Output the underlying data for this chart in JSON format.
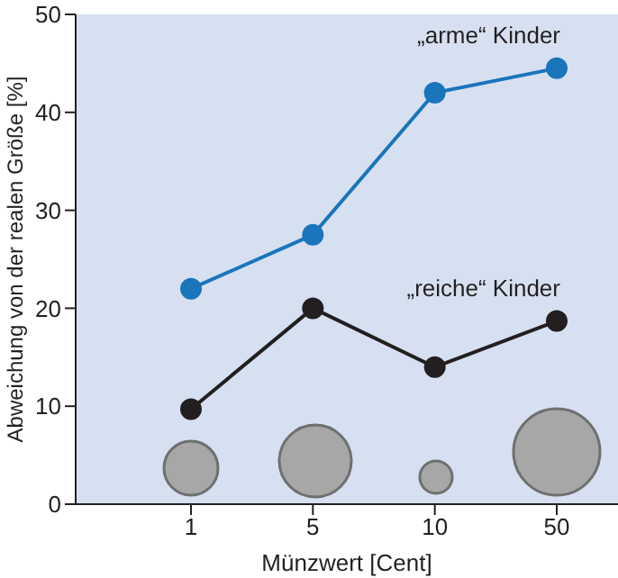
{
  "chart_data": {
    "type": "line",
    "categories": [
      "1",
      "5",
      "10",
      "50"
    ],
    "xlabel": "Münzwert [Cent]",
    "ylabel": "Abweichung von der realen Größe [%]",
    "ylim": [
      0,
      50
    ],
    "yticks": [
      0,
      10,
      20,
      30,
      40,
      50
    ],
    "grid": false,
    "legend": false,
    "marker": "circle",
    "line_style": "solid",
    "series": [
      {
        "name": "„arme“ Kinder",
        "color": "#1a75bb",
        "values": [
          22,
          27.5,
          42,
          44.5
        ]
      },
      {
        "name": "„reiche“ Kinder",
        "color": "#231f20",
        "values": [
          9.7,
          20,
          14,
          18.7
        ]
      }
    ]
  }
}
